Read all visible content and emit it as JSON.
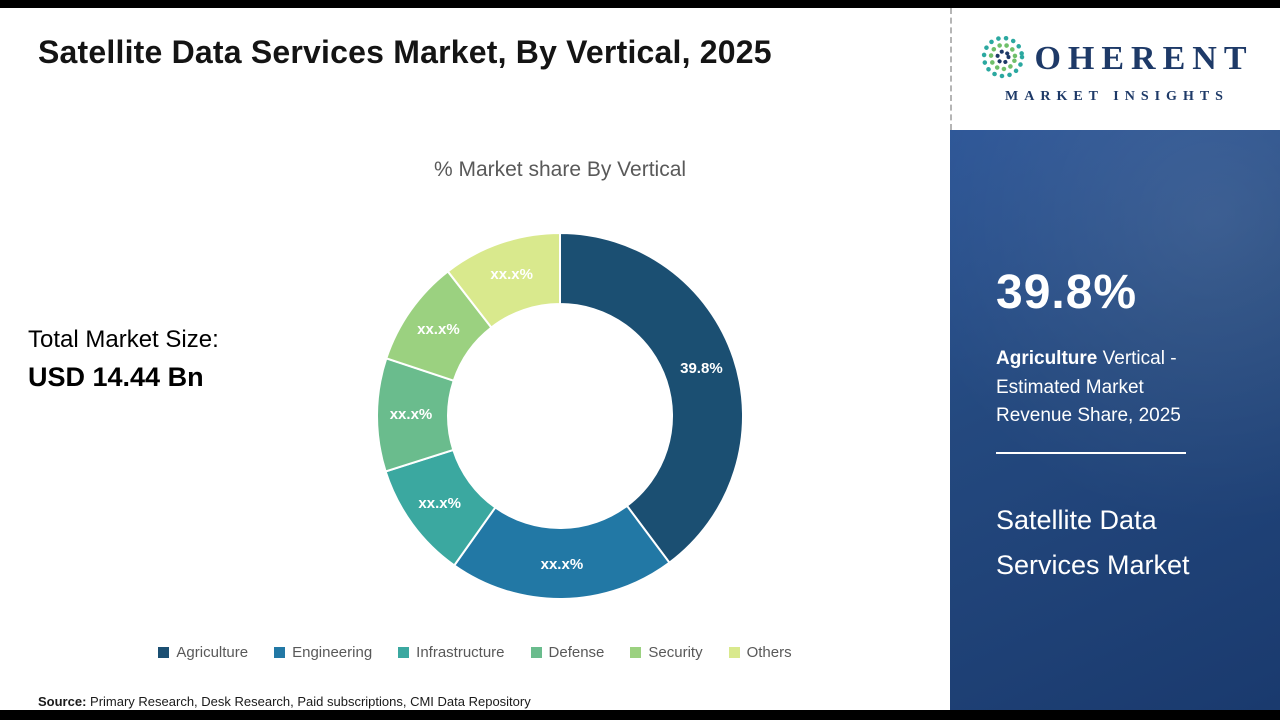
{
  "header": {
    "title": "Satellite Data Services Market, By Vertical, 2025",
    "logo": {
      "text_after_globe": "OHERENT",
      "subtext": "MARKET INSIGHTS",
      "brand_color": "#1e3a68"
    }
  },
  "main": {
    "chart_title": "% Market share By Vertical",
    "total_label": "Total Market Size:",
    "total_value": "USD 14.44 Bn",
    "source_label": "Source:",
    "source_text": " Primary Research, Desk Research, Paid subscriptions, CMI Data Repository"
  },
  "panel": {
    "stat": "39.8%",
    "highlight": "Agriculture",
    "desc_rest": " Vertical - Estimated Market Revenue Share, 2025",
    "product": "Satellite Data Services Market"
  },
  "chart_data": {
    "type": "pie",
    "subtype": "donut",
    "title": "% Market share By Vertical",
    "categories": [
      "Agriculture",
      "Engineering",
      "Infrastructure",
      "Defense",
      "Security",
      "Others"
    ],
    "values": [
      39.8,
      20.0,
      10.3,
      10.0,
      9.4,
      10.5
    ],
    "display_labels": [
      "39.8%",
      "xx.x%",
      "xx.x%",
      "xx.x%",
      "xx.x%",
      "xx.x%"
    ],
    "colors": [
      "#1b4f72",
      "#2278a5",
      "#3ba8a0",
      "#6abc8d",
      "#9bd180",
      "#d9e98d"
    ],
    "legend_position": "bottom",
    "start_angle_deg": 0,
    "direction": "clockwise"
  }
}
